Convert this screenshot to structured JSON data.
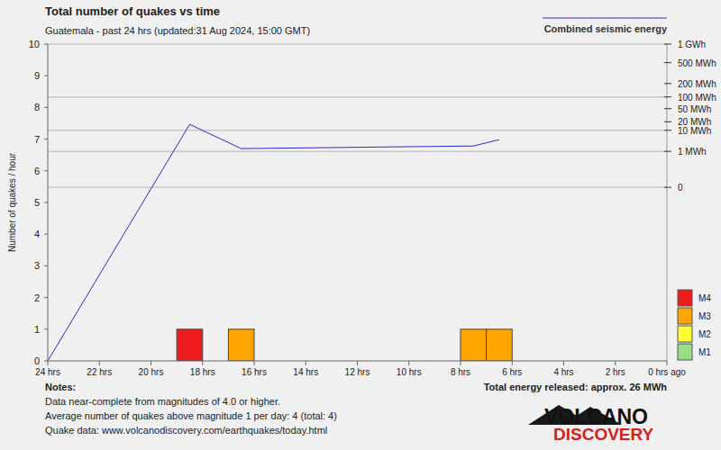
{
  "chart_data": {
    "type": "bar",
    "title": "Total number of quakes vs time",
    "subtitle": "Guatemala - past 24 hrs (updated:31 Aug 2024, 15:00 GMT)",
    "y_label": "Number of quakes / hour",
    "stacked": true,
    "legend": "right",
    "grid": true,
    "x": [
      18.5,
      16.5,
      7.5,
      6.5
    ],
    "xlim": [
      24,
      0
    ],
    "xticks": [
      {
        "value": 24,
        "label": "24 hrs"
      },
      {
        "value": 22,
        "label": "22 hrs"
      },
      {
        "value": 20,
        "label": "20 hrs"
      },
      {
        "value": 18,
        "label": "18 hrs"
      },
      {
        "value": 16,
        "label": "16 hrs"
      },
      {
        "value": 14,
        "label": "14 hrs"
      },
      {
        "value": 12,
        "label": "12 hrs"
      },
      {
        "value": 10,
        "label": "10 hrs"
      },
      {
        "value": 8,
        "label": "8 hrs"
      },
      {
        "value": 6,
        "label": "6 hrs"
      },
      {
        "value": 4,
        "label": "4 hrs"
      },
      {
        "value": 2,
        "label": "2 hrs"
      },
      {
        "value": 0,
        "label": "0 hrs ago"
      }
    ],
    "ylim": [
      0,
      10
    ],
    "yticks": [
      0,
      1,
      2,
      3,
      4,
      5,
      6,
      7,
      8,
      9,
      10
    ],
    "y2lim": [
      -2620,
      1000
    ],
    "y2ticks": [
      {
        "value": 1000,
        "label": "1 GWh"
      },
      {
        "value": 500,
        "label": "500 MWh"
      },
      {
        "value": 200,
        "label": "200 MWh"
      },
      {
        "value": 100,
        "label": "100 MWh"
      },
      {
        "value": 50,
        "label": "50 MWh"
      },
      {
        "value": 20,
        "label": "20 MWh"
      },
      {
        "value": 10,
        "label": "10 MWh"
      },
      {
        "value": 1,
        "label": "1 MWh"
      },
      0
    ],
    "series": [
      {
        "name": "M4",
        "color": "#ee1c1c",
        "values": [
          1,
          0,
          0,
          0
        ]
      },
      {
        "name": "M3",
        "color": "#ffa500",
        "values": [
          0,
          1,
          1,
          1
        ]
      },
      {
        "name": "M2",
        "color": "#ffff33",
        "values": [
          0,
          0,
          0,
          0
        ]
      },
      {
        "name": "M1",
        "color": "#99dd88",
        "values": [
          0,
          0,
          0,
          0
        ]
      },
      {
        "name": "Combined seismic energy",
        "type": "line",
        "axis": "y2",
        "color": "#2a2acc",
        "x": [
          24,
          18.5,
          16.5,
          7.5,
          6.5
        ],
        "values": [
          -2620,
          16.4,
          1.44,
          2.0,
          4.08
        ]
      }
    ],
    "notes": [
      "Notes:",
      "Data near-complete from magnitudes of 4.0 or higher.",
      "Average number of quakes above magnitude 1 per day: 4 (total: 4)",
      "Quake data: www.volcanodiscovery.com/earthquakes/today.html"
    ],
    "annotations": [
      "Total energy released: approx. 26 MWh"
    ],
    "logo": [
      "VOLCANO",
      "DISCOVERY"
    ]
  }
}
